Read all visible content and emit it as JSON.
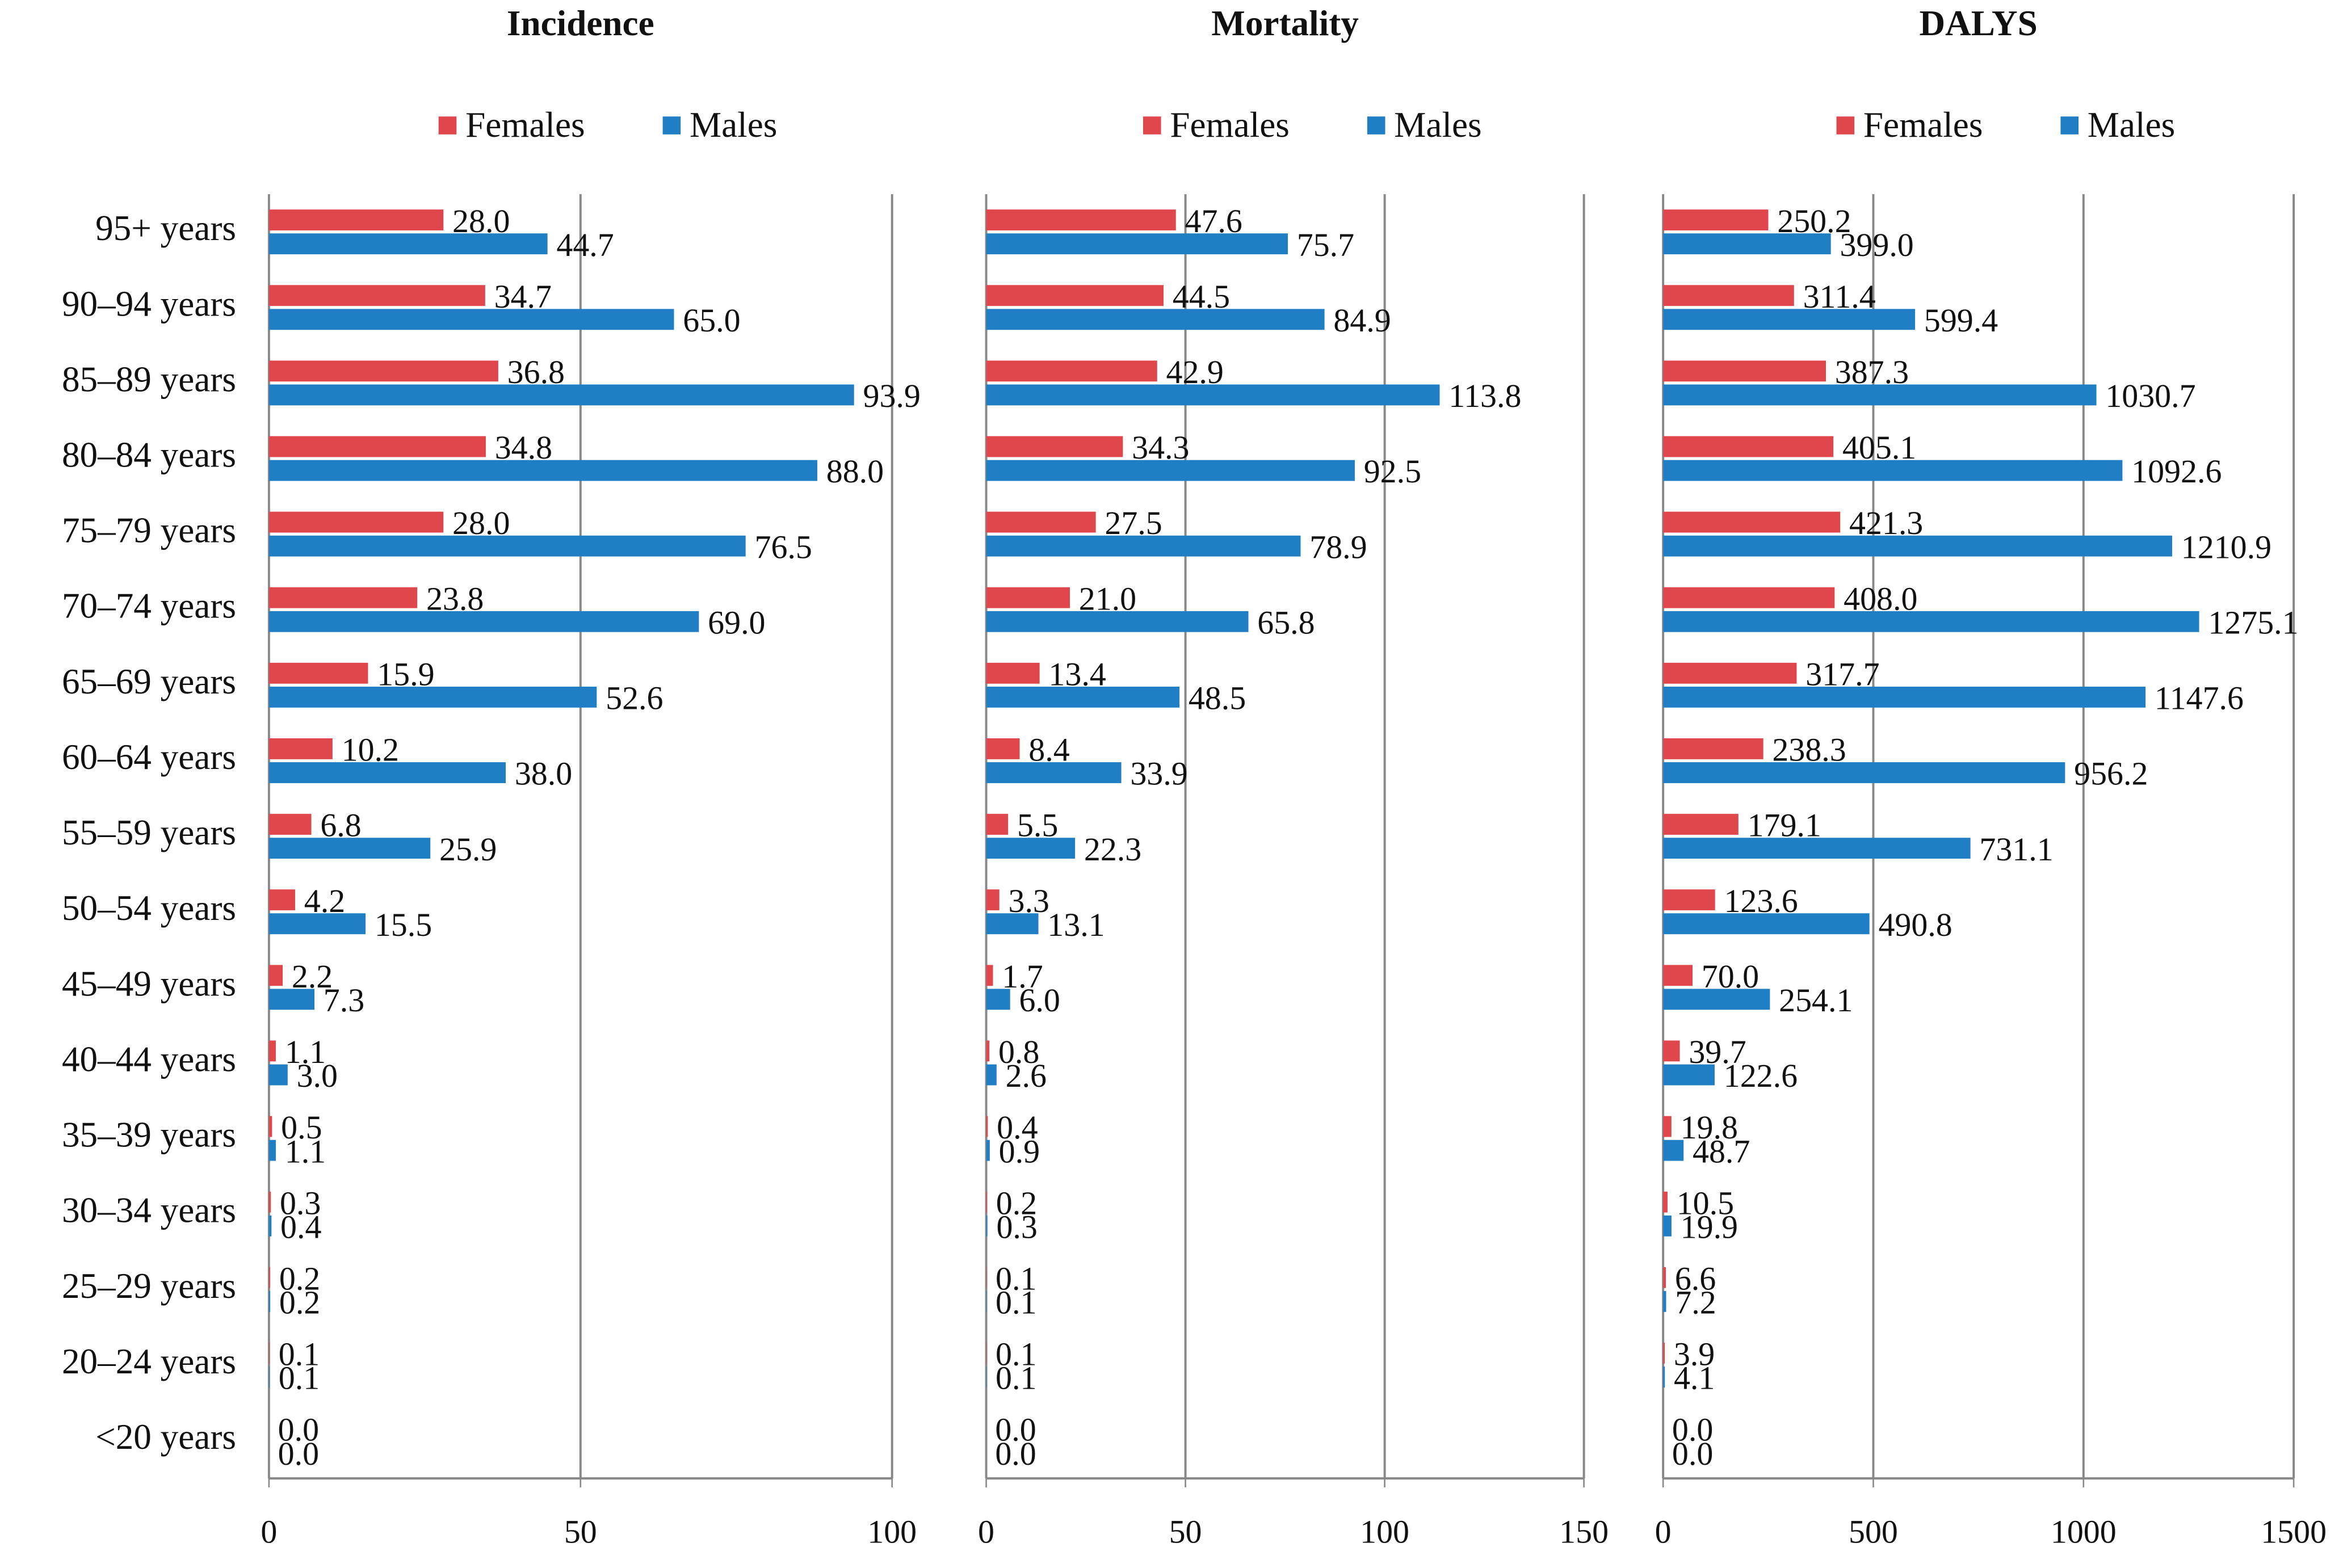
{
  "chart_data": [
    {
      "type": "hbar",
      "title": "Incidence",
      "categories": [
        "95+ years",
        "90–94 years",
        "85–89 years",
        "80–84 years",
        "75–79 years",
        "70–74 years",
        "65–69 years",
        "60–64 years",
        "55–59 years",
        "50–54 years",
        "45–49 years",
        "40–44 years",
        "35–39 years",
        "30–34 years",
        "25–29 years",
        "20–24 years",
        "<20 years"
      ],
      "series": [
        {
          "name": "Females",
          "color": "#e0474c",
          "values": [
            28,
            34.7,
            36.8,
            34.8,
            28,
            23.8,
            15.9,
            10.2,
            6.8,
            4.2,
            2.2,
            1.1,
            0.5,
            0.3,
            0.2,
            0.1,
            0
          ],
          "value_labels": [
            "28.0",
            "34.7",
            "36.8",
            "34.8",
            "28.0",
            "23.8",
            "15.9",
            "10.2",
            "6.8",
            "4.2",
            "2.2",
            "1.1",
            "0.5",
            "0.3",
            "0.2",
            "0.1",
            "0.0"
          ]
        },
        {
          "name": "Males",
          "color": "#1f7ec4",
          "values": [
            44.7,
            65,
            93.9,
            88,
            76.5,
            69,
            52.6,
            38,
            25.9,
            15.5,
            7.3,
            3,
            1.1,
            0.4,
            0.2,
            0.1,
            0
          ],
          "value_labels": [
            "44.7",
            "65.0",
            "93.9",
            "88.0",
            "76.5",
            "69.0",
            "52.6",
            "38.0",
            "25.9",
            "15.5",
            "7.3",
            "3.0",
            "1.1",
            "0.4",
            "0.2",
            "0.1",
            "0.0"
          ]
        }
      ],
      "xlim": [
        0,
        100
      ],
      "xticks": [
        0,
        50,
        100
      ],
      "grid": true
    },
    {
      "type": "hbar",
      "title": "Mortality",
      "series": [
        {
          "name": "Females",
          "color": "#e0474c",
          "values": [
            47.6,
            44.5,
            42.9,
            34.3,
            27.5,
            21,
            13.4,
            8.4,
            5.5,
            3.3,
            1.7,
            0.8,
            0.4,
            0.2,
            0.1,
            0.1,
            0
          ],
          "value_labels": [
            "47.6",
            "44.5",
            "42.9",
            "34.3",
            "27.5",
            "21.0",
            "13.4",
            "8.4",
            "5.5",
            "3.3",
            "1.7",
            "0.8",
            "0.4",
            "0.2",
            "0.1",
            "0.1",
            "0.0"
          ]
        },
        {
          "name": "Males",
          "color": "#1f7ec4",
          "values": [
            75.7,
            84.9,
            113.8,
            92.5,
            78.9,
            65.8,
            48.5,
            33.9,
            22.3,
            13.1,
            6,
            2.6,
            0.9,
            0.3,
            0.1,
            0.1,
            0
          ],
          "value_labels": [
            "75.7",
            "84.9",
            "113.8",
            "92.5",
            "78.9",
            "65.8",
            "48.5",
            "33.9",
            "22.3",
            "13.1",
            "6.0",
            "2.6",
            "0.9",
            "0.3",
            "0.1",
            "0.1",
            "0.0"
          ]
        }
      ],
      "xlim": [
        0,
        150
      ],
      "xticks": [
        0,
        50,
        100,
        150
      ],
      "grid": true
    },
    {
      "type": "hbar",
      "title": "DALYS",
      "series": [
        {
          "name": "Females",
          "color": "#e0474c",
          "values": [
            250.2,
            311.4,
            387.3,
            405.1,
            421.3,
            408,
            317.7,
            238.3,
            179.1,
            123.6,
            70,
            39.7,
            19.8,
            10.5,
            6.6,
            3.9,
            0
          ],
          "value_labels": [
            "250.2",
            "311.4",
            "387.3",
            "405.1",
            "421.3",
            "408.0",
            "317.7",
            "238.3",
            "179.1",
            "123.6",
            "70.0",
            "39.7",
            "19.8",
            "10.5",
            "6.6",
            "3.9",
            "0.0"
          ]
        },
        {
          "name": "Males",
          "color": "#1f7ec4",
          "values": [
            399,
            599.4,
            1030.7,
            1092.6,
            1210.9,
            1275.1,
            1147.6,
            956.2,
            731.1,
            490.8,
            254.1,
            122.6,
            48.7,
            19.9,
            7.2,
            4.1,
            0
          ],
          "value_labels": [
            "399.0",
            "599.4",
            "1030.7",
            "1092.6",
            "1210.9",
            "1275.1",
            "1147.6",
            "956.2",
            "731.1",
            "490.8",
            "254.1",
            "122.6",
            "48.7",
            "19.9",
            "7.2",
            "4.1",
            "0.0"
          ]
        }
      ],
      "xlim": [
        0,
        1500
      ],
      "xticks": [
        0,
        500,
        1000,
        1500
      ],
      "grid": true
    }
  ]
}
